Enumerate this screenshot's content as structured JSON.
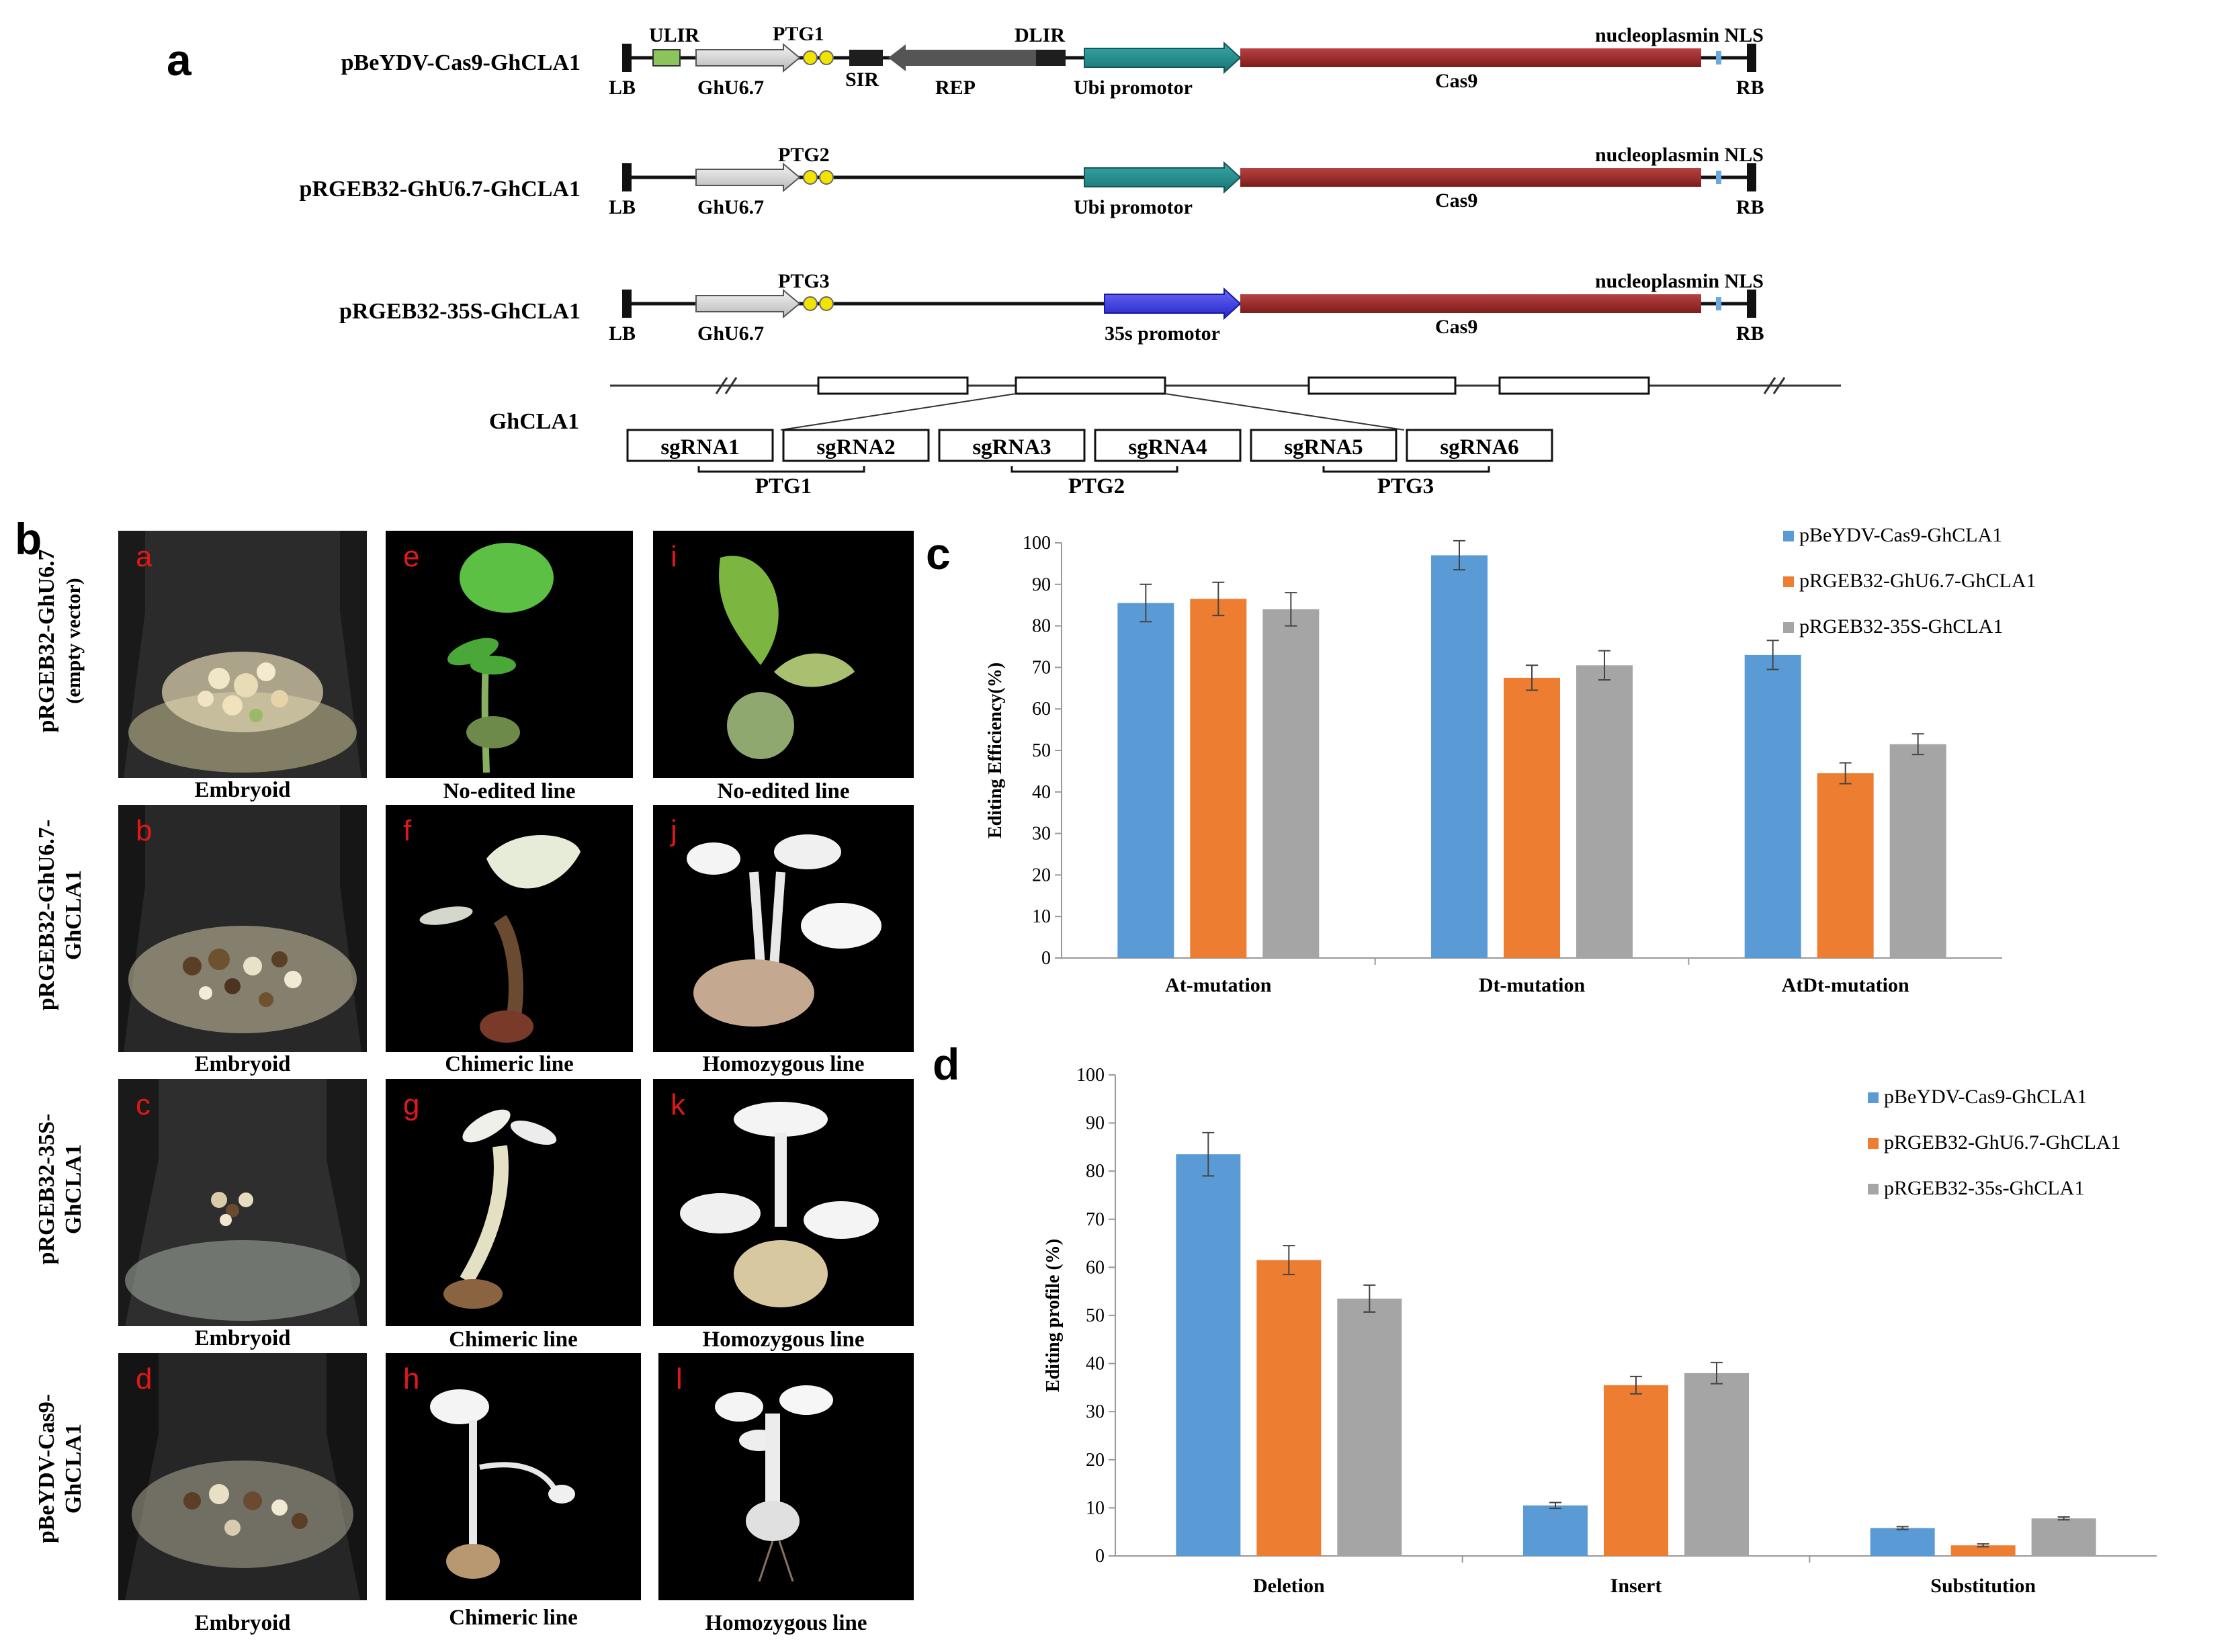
{
  "panel_a": {
    "letter": "a",
    "constructs": [
      {
        "name": "pBeYDV-Cas9-GhCLA1",
        "top_labels": [
          "ULIR",
          "PTG1",
          "DLIR",
          "nucleoplasmin NLS"
        ],
        "bottom_labels": [
          "LB",
          "GhU6.7",
          "SIR",
          "REP",
          "Ubi promotor",
          "Cas9",
          "RB"
        ]
      },
      {
        "name": "pRGEB32-GhU6.7-GhCLA1",
        "top_labels": [
          "PTG2",
          "nucleoplasmin NLS"
        ],
        "bottom_labels": [
          "LB",
          "GhU6.7",
          "Ubi promotor",
          "Cas9",
          "RB"
        ]
      },
      {
        "name": "pRGEB32-35S-GhCLA1",
        "top_labels": [
          "PTG3",
          "nucleoplasmin NLS"
        ],
        "bottom_labels": [
          "LB",
          "GhU6.7",
          "35s promotor",
          "Cas9",
          "RB"
        ]
      }
    ],
    "gene": "GhCLA1",
    "sgrnas": [
      "sgRNA1",
      "sgRNA2",
      "sgRNA3",
      "sgRNA4",
      "sgRNA5",
      "sgRNA6"
    ],
    "ptgs": [
      "PTG1",
      "PTG2",
      "PTG3"
    ],
    "colors": {
      "ulir": "#8ac45a",
      "ghu6": "#d8d8d8",
      "ptg": "#f2e400",
      "sir": "#1e1e1e",
      "rep": "#555555",
      "dlir": "#1e1e1e",
      "ubi": "#1f8c8c",
      "p35s": "#3a3ae8",
      "cas9": "#9e2b2b",
      "nls": "#6aa8e0"
    }
  },
  "panel_b": {
    "letter": "b",
    "row_labels": [
      [
        "pRGEB32-GhU6.7",
        "(empty vector)"
      ],
      [
        "pRGEB32-GhU6.7-",
        "GhCLA1"
      ],
      [
        "pRGEB32-35S-",
        "GhCLA1"
      ],
      [
        "pBeYDV-Cas9-",
        "GhCLA1"
      ]
    ],
    "photos": [
      {
        "tag": "a",
        "caption": "Embryoid"
      },
      {
        "tag": "e",
        "caption": "No-edited line"
      },
      {
        "tag": "i",
        "caption": "No-edited line"
      },
      {
        "tag": "b",
        "caption": "Embryoid"
      },
      {
        "tag": "f",
        "caption": "Chimeric line"
      },
      {
        "tag": "j",
        "caption": "Homozygous line"
      },
      {
        "tag": "c",
        "caption": "Embryoid"
      },
      {
        "tag": "g",
        "caption": "Chimeric line"
      },
      {
        "tag": "k",
        "caption": "Homozygous line"
      },
      {
        "tag": "d",
        "caption": "Embryoid"
      },
      {
        "tag": "h",
        "caption": "Chimeric line"
      },
      {
        "tag": "l",
        "caption": "Homozygous line"
      }
    ]
  },
  "chart_data": [
    {
      "panel": "c",
      "type": "bar",
      "ylabel": "Editing Efficiency(%)",
      "ylim": [
        0,
        100
      ],
      "yticks": [
        0,
        10,
        20,
        30,
        40,
        50,
        60,
        70,
        80,
        90,
        100
      ],
      "categories": [
        "At-mutation",
        "Dt-mutation",
        "AtDt-mutation"
      ],
      "series": [
        {
          "name": "pBeYDV-Cas9-GhCLA1",
          "color": "#5b9bd5",
          "values": [
            85.5,
            97,
            73
          ],
          "errors": [
            4.5,
            3.5,
            3.5
          ]
        },
        {
          "name": "pRGEB32-GhU6.7-GhCLA1",
          "color": "#ed7d31",
          "values": [
            86.5,
            67.5,
            44.5
          ],
          "errors": [
            4,
            3,
            2.5
          ]
        },
        {
          "name": "pRGEB32-35S-GhCLA1",
          "color": "#a5a5a5",
          "values": [
            84,
            70.5,
            51.5
          ],
          "errors": [
            4,
            3.5,
            2.5
          ]
        }
      ],
      "legend_position": "top-right"
    },
    {
      "panel": "d",
      "type": "bar",
      "ylabel": "Editing profile (%)",
      "ylim": [
        0,
        100
      ],
      "yticks": [
        0,
        10,
        20,
        30,
        40,
        50,
        60,
        70,
        80,
        90,
        100
      ],
      "categories": [
        "Deletion",
        "Insert",
        "Substitution"
      ],
      "series": [
        {
          "name": "pBeYDV-Cas9-GhCLA1",
          "color": "#5b9bd5",
          "values": [
            83.5,
            10.5,
            5.8
          ],
          "errors": [
            4.5,
            0.6,
            0.3
          ]
        },
        {
          "name": "pRGEB32-GhU6.7-GhCLA1",
          "color": "#ed7d31",
          "values": [
            61.5,
            35.5,
            2.2
          ],
          "errors": [
            3,
            1.8,
            0.3
          ]
        },
        {
          "name": "pRGEB32-35s-GhCLA1",
          "color": "#a5a5a5",
          "values": [
            53.5,
            38,
            7.8
          ],
          "errors": [
            2.8,
            2.2,
            0.3
          ]
        }
      ],
      "legend_position": "top-right"
    }
  ]
}
